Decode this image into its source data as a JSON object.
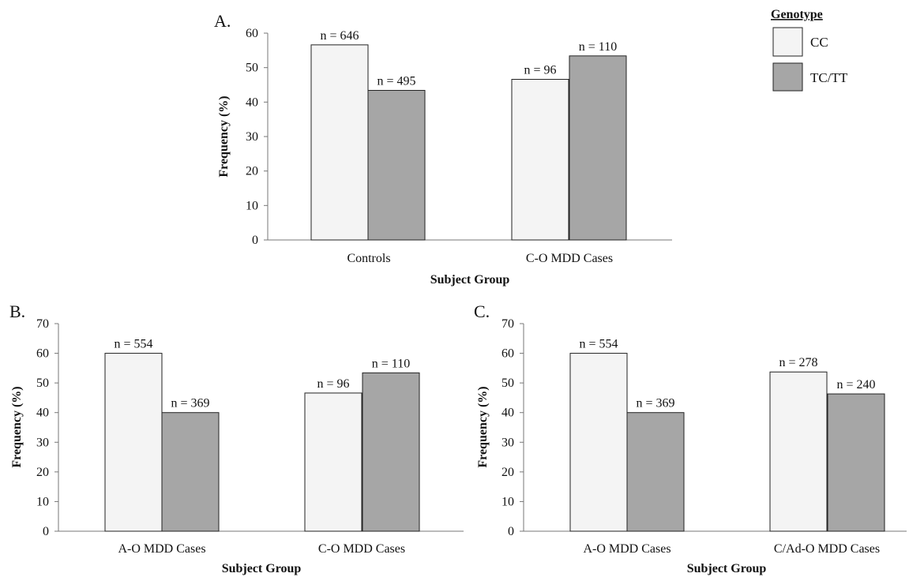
{
  "legend": {
    "title": "Genotype",
    "items": [
      {
        "label": "CC",
        "color": "#f4f4f4"
      },
      {
        "label": "TC/TT",
        "color": "#a6a6a6"
      }
    ]
  },
  "chart_data": [
    {
      "type": "bar",
      "panel": "A.",
      "xlabel": "Subject Group",
      "ylabel": "Frequency (%)",
      "ylim": [
        0,
        60
      ],
      "yticks": [
        0,
        10,
        20,
        30,
        40,
        50,
        60
      ],
      "categories": [
        "Controls",
        "C-O MDD Cases"
      ],
      "series": [
        {
          "name": "CC",
          "values": [
            56.6,
            46.6
          ],
          "labels": [
            "n = 646",
            "n = 96"
          ]
        },
        {
          "name": "TC/TT",
          "values": [
            43.4,
            53.4
          ],
          "labels": [
            "n = 495",
            "n = 110"
          ]
        }
      ]
    },
    {
      "type": "bar",
      "panel": "B.",
      "xlabel": "Subject Group",
      "ylabel": "Frequency (%)",
      "ylim": [
        0,
        70
      ],
      "yticks": [
        0,
        10,
        20,
        30,
        40,
        50,
        60,
        70
      ],
      "categories": [
        "A-O MDD Cases",
        "C-O MDD Cases"
      ],
      "series": [
        {
          "name": "CC",
          "values": [
            60.0,
            46.6
          ],
          "labels": [
            "n = 554",
            "n = 96"
          ]
        },
        {
          "name": "TC/TT",
          "values": [
            40.0,
            53.4
          ],
          "labels": [
            "n = 369",
            "n = 110"
          ]
        }
      ]
    },
    {
      "type": "bar",
      "panel": "C.",
      "xlabel": "Subject Group",
      "ylabel": "Frequency (%)",
      "ylim": [
        0,
        70
      ],
      "yticks": [
        0,
        10,
        20,
        30,
        40,
        50,
        60,
        70
      ],
      "categories": [
        "A-O MDD Cases",
        "C/Ad-O MDD Cases"
      ],
      "series": [
        {
          "name": "CC",
          "values": [
            60.0,
            53.7
          ],
          "labels": [
            "n = 554",
            "n = 278"
          ]
        },
        {
          "name": "TC/TT",
          "values": [
            40.0,
            46.3
          ],
          "labels": [
            "n = 369",
            "n = 240"
          ]
        }
      ]
    }
  ]
}
